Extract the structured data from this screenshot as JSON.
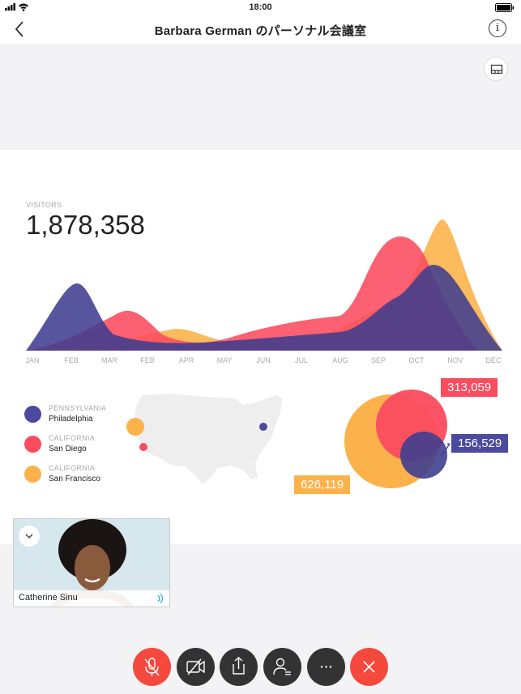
{
  "status": {
    "time": "18:00"
  },
  "nav": {
    "title": "Barbara German のパーソナル会議室"
  },
  "slide": {
    "visitors_label": "VISITORS",
    "visitors_total": "1,878,358",
    "months": [
      "JAN",
      "FEB",
      "MAR",
      "FEB",
      "APR",
      "MAY",
      "JUN",
      "JUL",
      "AUG",
      "SEP",
      "OCT",
      "NOV",
      "DEC"
    ],
    "legend": [
      {
        "state": "PENNSYLVANIA",
        "city": "Philadelphia",
        "color": "#4b4a9e"
      },
      {
        "state": "CALIFORNIA",
        "city": "San Diego",
        "color": "#fb4b5e"
      },
      {
        "state": "CALIFORNIA",
        "city": "San Francisco",
        "color": "#fbb24a"
      }
    ],
    "bubbles": {
      "red_value": "313,059",
      "blue_value": "156,529",
      "orange_value": "626,119"
    }
  },
  "selfview": {
    "name": "Catherine Sinu"
  },
  "controls": {
    "mute_color": "#f6493e",
    "end_color": "#f6493e",
    "dark_color": "#333333"
  }
}
